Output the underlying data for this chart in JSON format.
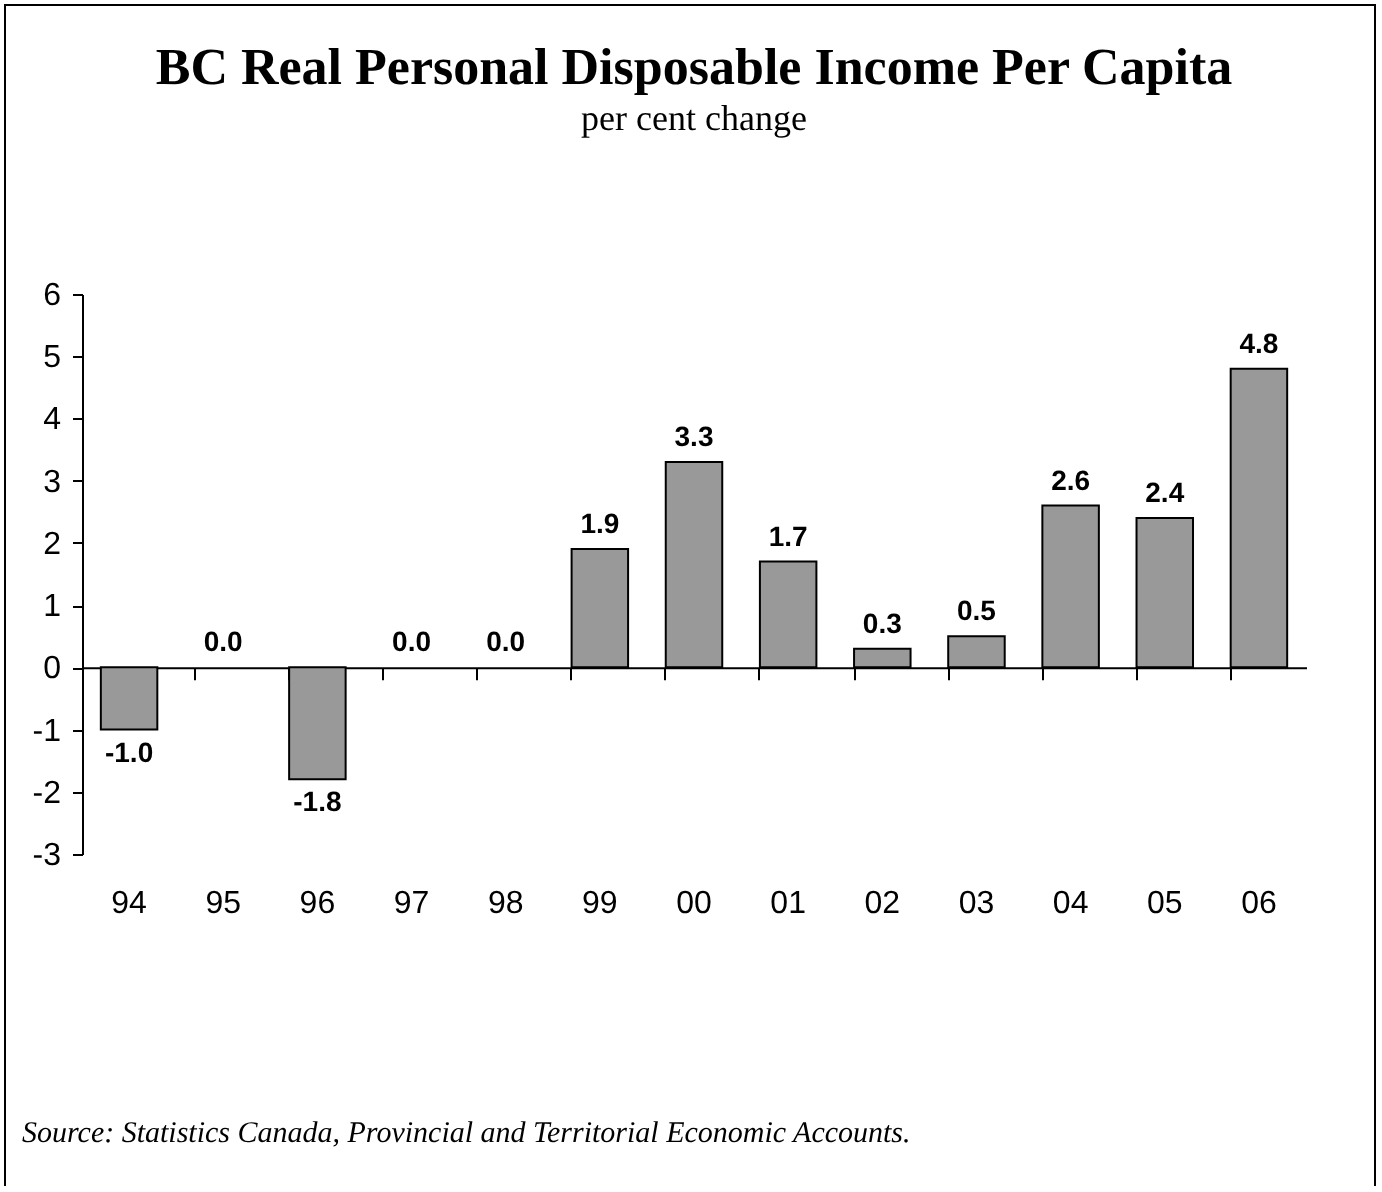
{
  "chart_data": {
    "type": "bar",
    "title": "BC Real Personal Disposable Income Per Capita",
    "subtitle": "per cent change",
    "categories": [
      "94",
      "95",
      "96",
      "97",
      "98",
      "99",
      "00",
      "01",
      "02",
      "03",
      "04",
      "05",
      "06"
    ],
    "values": [
      -1.0,
      0.0,
      -1.8,
      0.0,
      0.0,
      1.9,
      3.3,
      1.7,
      0.3,
      0.5,
      2.6,
      2.4,
      4.8
    ],
    "value_labels": [
      "-1.0",
      "0.0",
      "-1.8",
      "0.0",
      "0.0",
      "1.9",
      "3.3",
      "1.7",
      "0.3",
      "0.5",
      "2.6",
      "2.4",
      "4.8"
    ],
    "color": "#999999",
    "ylim": [
      -3,
      6
    ],
    "yticks": [
      -3,
      -2,
      -1,
      0,
      1,
      2,
      3,
      4,
      5,
      6
    ],
    "annotations": [
      "Source: Statistics Canada, Provincial and Territorial Economic Accounts."
    ]
  }
}
